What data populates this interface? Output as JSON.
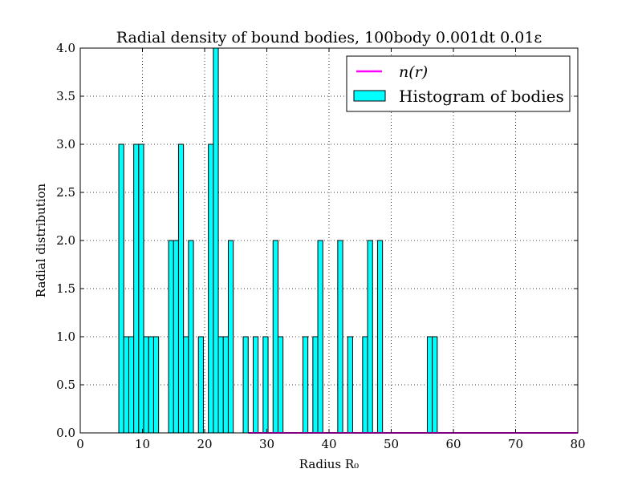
{
  "chart_data": {
    "type": "bar",
    "title": "Radial density of bound bodies, 100body 0.001dt 0.01ε",
    "xlabel": "Radius R₀",
    "ylabel": "Radial distribution",
    "xlim": [
      0,
      80
    ],
    "ylim": [
      0,
      4.0
    ],
    "xticks": [
      "0",
      "10",
      "20",
      "30",
      "40",
      "50",
      "60",
      "70",
      "80"
    ],
    "yticks": [
      "0.0",
      "0.5",
      "1.0",
      "1.5",
      "2.0",
      "2.5",
      "3.0",
      "3.5",
      "4.0"
    ],
    "grid": true,
    "legend_position": "top-right",
    "histogram": {
      "name": "Histogram of bodies",
      "color": "#00ffff",
      "edge_color": "#000000",
      "bin_width": 0.8,
      "bin_starts": [
        6.2,
        7.0,
        7.8,
        8.6,
        9.4,
        10.2,
        11.0,
        11.8,
        12.6,
        14.2,
        15.0,
        15.8,
        16.6,
        17.4,
        19.0,
        20.6,
        21.4,
        22.2,
        23.0,
        23.8,
        24.6,
        26.2,
        27.8,
        29.4,
        31.0,
        31.8,
        35.8,
        37.4,
        38.2,
        41.4,
        43.0,
        45.4,
        46.2,
        47.8,
        55.8,
        56.6
      ],
      "values": [
        3,
        1,
        1,
        3,
        3,
        1,
        1,
        1,
        0,
        2,
        2,
        3,
        1,
        2,
        1,
        3,
        4,
        1,
        1,
        2,
        0,
        1,
        1,
        1,
        2,
        1,
        1,
        1,
        2,
        2,
        1,
        1,
        2,
        2,
        1,
        1
      ]
    },
    "line": {
      "name": "n(r)",
      "color": "#ff00ff",
      "x": [
        27.0,
        80.0
      ],
      "y": [
        0.0,
        0.0
      ]
    }
  }
}
